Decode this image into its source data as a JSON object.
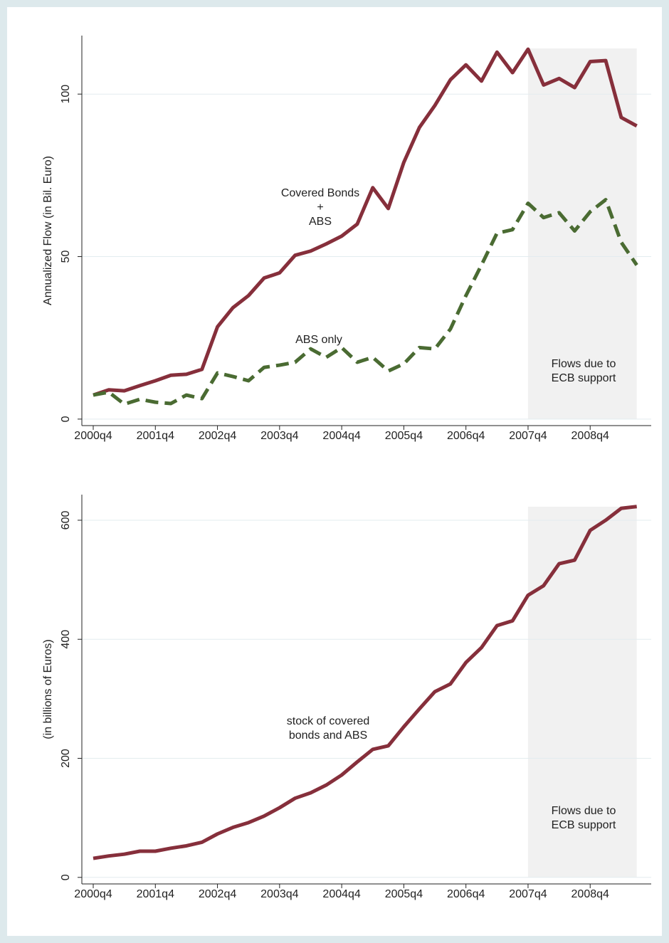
{
  "chart_data": [
    {
      "type": "line",
      "ylabel": "Annualized Flow (in Bil. Euro)",
      "categories": [
        "2000q4",
        null,
        null,
        null,
        "2001q4",
        null,
        null,
        null,
        "2002q4",
        null,
        null,
        null,
        "2003q4",
        null,
        null,
        null,
        "2004q4",
        null,
        null,
        null,
        "2005q4",
        null,
        null,
        null,
        "2006q4",
        null,
        null,
        null,
        "2007q4",
        null,
        null,
        null,
        "2008q4",
        null,
        null,
        null
      ],
      "series": [
        {
          "color": "#862f3b",
          "dash": false,
          "values": [
            7.4,
            9,
            8.7,
            10.3,
            11.8,
            13.5,
            13.8,
            15.3,
            28.4,
            34.3,
            38,
            43.4,
            45,
            50.4,
            51.7,
            53.9,
            56.3,
            60,
            71.2,
            64.8,
            79,
            89.7,
            96.5,
            104.4,
            109,
            104,
            112.9,
            106.6,
            113.8,
            102.8,
            104.8,
            102,
            110,
            110.3,
            92.8,
            90.2
          ]
        },
        {
          "color": "#4a6b32",
          "dash": true,
          "values": [
            7.4,
            8.3,
            4.6,
            6.1,
            5.2,
            4.8,
            7.4,
            6.3,
            14.2,
            13.1,
            11.8,
            15.9,
            16.6,
            17.5,
            21.6,
            19,
            22,
            17.5,
            19,
            14.8,
            17,
            22,
            21.6,
            27.7,
            38,
            47.4,
            57.2,
            58.3,
            66.4,
            62,
            63.5,
            57.9,
            63.8,
            67.5,
            54.4,
            47.4
          ]
        }
      ],
      "ylim": [
        -2,
        118
      ],
      "yticks": [
        0,
        50,
        100
      ],
      "grid": true,
      "annotations": [
        [
          "Covered Bonds",
          "+",
          "ABS"
        ],
        [
          "ABS only"
        ]
      ],
      "shade": {
        "from": "2007q4",
        "label": [
          "Flows due to",
          "ECB support"
        ]
      }
    },
    {
      "type": "line",
      "ylabel": "(in billions of Euros)",
      "categories": [
        "2000q4",
        null,
        null,
        null,
        "2001q4",
        null,
        null,
        null,
        "2002q4",
        null,
        null,
        null,
        "2003q4",
        null,
        null,
        null,
        "2004q4",
        null,
        null,
        null,
        "2005q4",
        null,
        null,
        null,
        "2006q4",
        null,
        null,
        null,
        "2007q4",
        null,
        null,
        null,
        "2008q4",
        null,
        null,
        null
      ],
      "series": [
        {
          "color": "#862f3b",
          "dash": false,
          "values": [
            32,
            36,
            39,
            44,
            44,
            49,
            53,
            59,
            73,
            84,
            92,
            103,
            117,
            133,
            142,
            155,
            172,
            194,
            215,
            221,
            253,
            283,
            312,
            325,
            361,
            386,
            423,
            431,
            474,
            490,
            527,
            533,
            583,
            600,
            620,
            623
          ]
        }
      ],
      "ylim": [
        -11,
        643
      ],
      "yticks": [
        0,
        200,
        400,
        600
      ],
      "grid": true,
      "annotations": [
        [
          "stock of covered",
          "bonds and ABS"
        ]
      ],
      "shade": {
        "from": "2007q4",
        "label": [
          "Flows due to",
          "ECB support"
        ]
      }
    }
  ]
}
